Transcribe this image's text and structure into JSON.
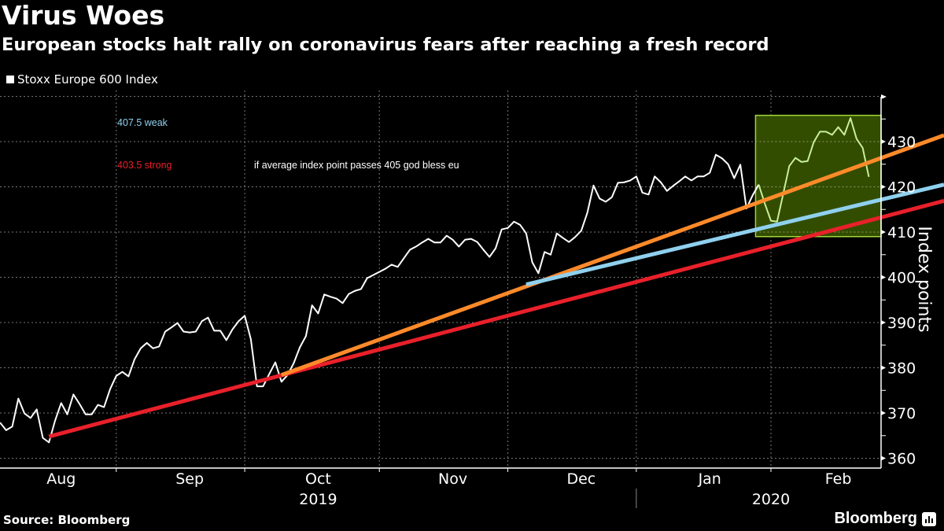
{
  "header": {
    "title": "Virus Woes",
    "subtitle": "European stocks halt rally on coronavirus fears after reaching a fresh record",
    "legend": "Stoxx Europe 600 Index"
  },
  "footer": {
    "source": "Source: Bloomberg",
    "brand": "Bloomberg"
  },
  "annotations": {
    "weak": {
      "text": "407.5 weak",
      "color": "#8fd0ee"
    },
    "strong": {
      "text": "403.5 strong",
      "color": "#e8202a"
    },
    "note": {
      "text": "if  average index point passes 405 god bless eu",
      "color": "#ffffff"
    }
  },
  "chart_data": {
    "type": "line",
    "title": "Virus Woes",
    "subtitle": "European stocks halt rally on coronavirus fears after reaching a fresh record",
    "xlabel": "",
    "ylabel": "Index points",
    "ylim": [
      358,
      440
    ],
    "yticks": [
      360,
      370,
      380,
      390,
      400,
      410,
      420,
      430
    ],
    "grid": true,
    "legend_position": "top-left",
    "x_month_ticks": [
      {
        "label": "Aug",
        "day": 10
      },
      {
        "label": "Sep",
        "day": 31
      },
      {
        "label": "Oct",
        "day": 52
      },
      {
        "label": "Nov",
        "day": 74
      },
      {
        "label": "Dec",
        "day": 95
      },
      {
        "label": "Jan",
        "day": 116
      },
      {
        "label": "Feb",
        "day": 137
      }
    ],
    "x_month_boundaries": [
      19,
      40,
      62,
      83,
      104,
      126
    ],
    "x_years": [
      {
        "label": "2019",
        "center_day": 52
      },
      {
        "label": "2020",
        "center_day": 126
      }
    ],
    "year_boundary_day": 104,
    "x_range_days": [
      0,
      154
    ],
    "series": [
      {
        "name": "Stoxx Europe 600 Index",
        "color": "#ffffff",
        "values": [
          367.9,
          366.2,
          367.0,
          373.2,
          369.9,
          368.9,
          370.8,
          364.5,
          363.5,
          368.3,
          372.2,
          369.7,
          374.1,
          372.0,
          369.7,
          369.7,
          371.8,
          371.3,
          375.3,
          378.2,
          379.1,
          378.1,
          381.9,
          384.3,
          385.5,
          384.3,
          384.7,
          388.0,
          388.9,
          389.9,
          388.0,
          387.8,
          388.0,
          390.3,
          391.1,
          388.2,
          388.2,
          386.1,
          388.5,
          390.3,
          391.5,
          386.3,
          375.9,
          375.9,
          378.6,
          381.2,
          376.9,
          378.4,
          381.0,
          384.5,
          387.0,
          393.8,
          392.0,
          396.2,
          395.7,
          395.3,
          394.3,
          396.3,
          397.0,
          397.4,
          399.8,
          400.5,
          401.2,
          401.9,
          402.8,
          402.3,
          404.2,
          406.1,
          406.8,
          407.7,
          408.5,
          407.7,
          407.7,
          409.2,
          408.3,
          406.8,
          408.3,
          408.5,
          407.8,
          406.1,
          404.5,
          406.4,
          410.6,
          410.9,
          412.3,
          411.6,
          409.7,
          403.3,
          400.9,
          405.6,
          405.0,
          409.7,
          408.7,
          407.8,
          408.9,
          410.3,
          414.3,
          420.3,
          417.4,
          416.7,
          417.7,
          420.9,
          421.0,
          421.4,
          422.3,
          418.7,
          418.3,
          422.3,
          421.0,
          419.1,
          420.2,
          421.2,
          422.3,
          421.4,
          422.3,
          422.3,
          423.1,
          427.1,
          426.3,
          425.0,
          421.9,
          424.9,
          415.2,
          418.1,
          420.5,
          416.3,
          412.5,
          412.3,
          418.4,
          424.6,
          426.4,
          425.5,
          425.7,
          429.9,
          432.2,
          432.2,
          431.5,
          433.2,
          431.5,
          435.2,
          430.6,
          428.6,
          422.2
        ]
      }
    ],
    "trend_lines": [
      {
        "name": "403.5 strong",
        "color": "#e8202a",
        "start": {
          "day": 8,
          "value": 364.8
        },
        "end_value_at_range_end": 416.9
      },
      {
        "name": "orange support",
        "color": "#ff8a2a",
        "start": {
          "day": 46,
          "value": 378.4
        },
        "end_value_at_range_end": 431.4
      },
      {
        "name": "407.5 weak",
        "color": "#8fd0ee",
        "start": {
          "day": 86,
          "value": 398.4
        },
        "end_value_at_range_end": 420.5
      }
    ],
    "highlight_box": {
      "day_start": 124,
      "day_end": 144,
      "value_low": 409.0,
      "value_high": 435.8,
      "fill": "#334d00",
      "border": "#9fd63a",
      "line_color": "#c9ef9a"
    }
  }
}
